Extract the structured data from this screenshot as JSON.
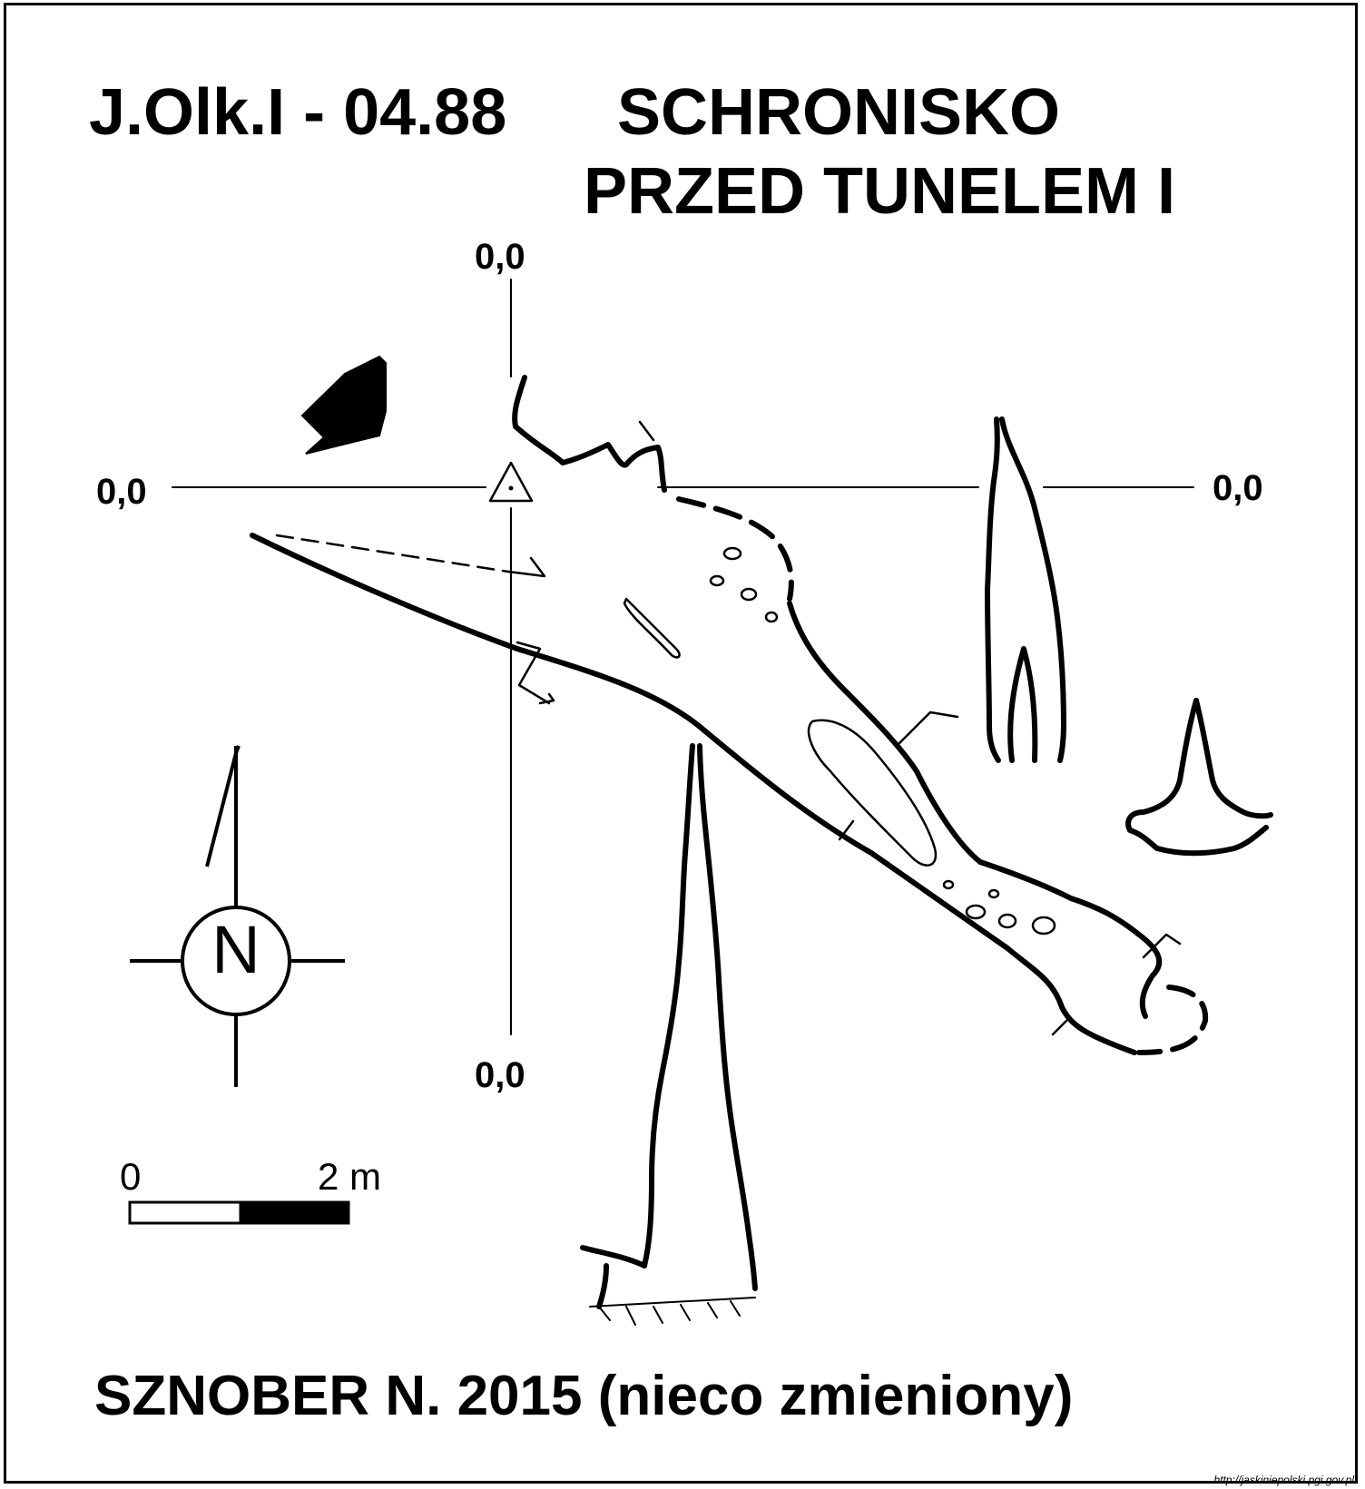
{
  "title": {
    "code": "J.Olk.I - 04.88",
    "name_line1": "SCHRONISKO",
    "name_line2": "PRZED TUNELEM I"
  },
  "coordinates": {
    "top": "0,0",
    "left": "0,0",
    "right": "0,0",
    "bottom": "0,0"
  },
  "north_arrow": {
    "letter": "N"
  },
  "scale_bar": {
    "start_label": "0",
    "end_label": "2 m"
  },
  "credits": {
    "author": "SZNOBER N.  2015  (nieco zmieniony)",
    "source_url": "http://jaskiniepolski.pgi.gov.pl"
  },
  "colors": {
    "ink": "#000000",
    "paper": "#ffffff"
  }
}
